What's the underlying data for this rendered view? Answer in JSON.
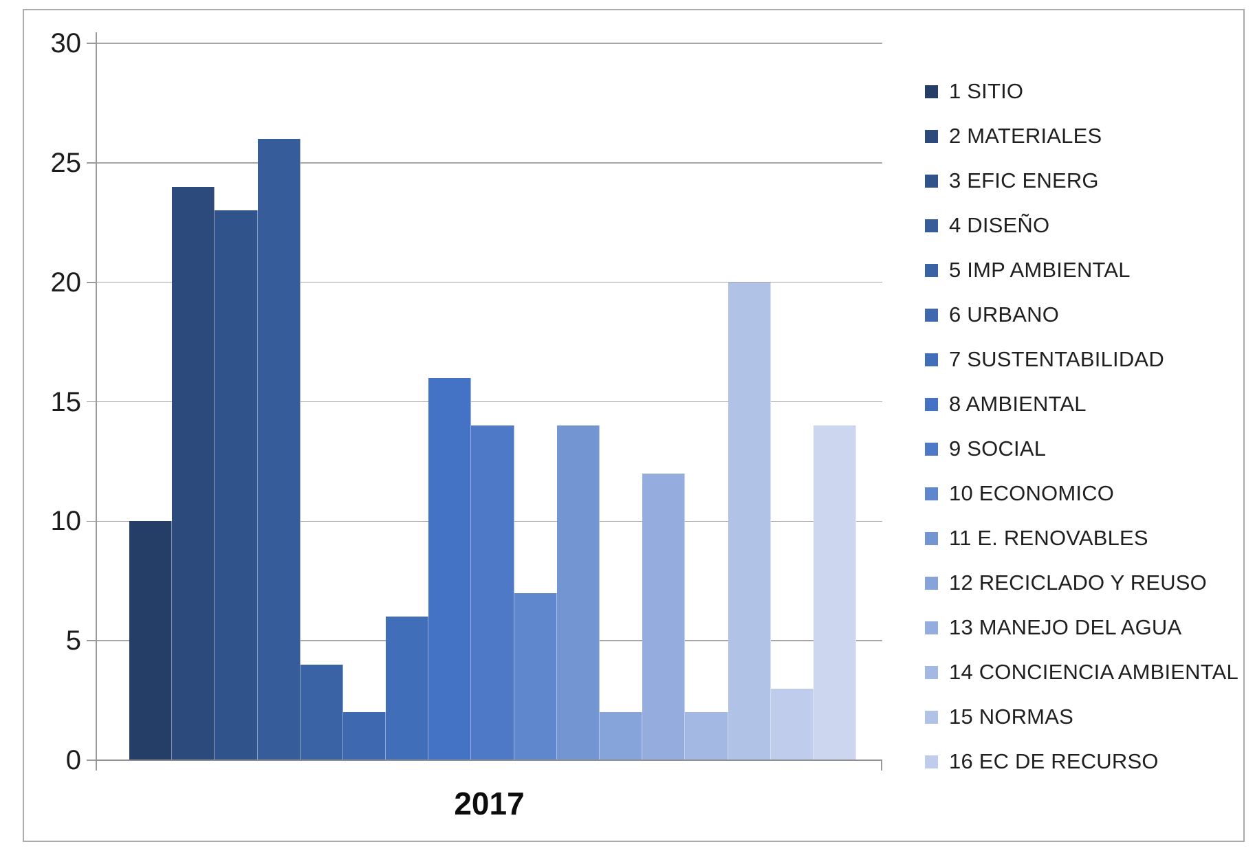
{
  "figure": {
    "background": "#ffffff",
    "frame_border_color": "#ababab",
    "gridline_color": "#a6a6a6"
  },
  "chart_data": {
    "type": "bar",
    "title": "",
    "x_label": "2017",
    "ylabel": "",
    "ylim": [
      0,
      30
    ],
    "y_ticks": [
      0,
      5,
      10,
      15,
      20,
      25,
      30
    ],
    "grid": true,
    "legend_position": "right",
    "series": [
      {
        "legend_label": "1 SITIO",
        "value": 10,
        "color": "#243E68"
      },
      {
        "legend_label": "2 MATERIALES",
        "value": 24,
        "color": "#2C4A7B"
      },
      {
        "legend_label": "3 EFIC  ENERG",
        "value": 23,
        "color": "#31538B"
      },
      {
        "legend_label": "4 DISEÑO",
        "value": 26,
        "color": "#365C9A"
      },
      {
        "legend_label": "5 IMP AMBIENTAL",
        "value": 4,
        "color": "#3A63A6"
      },
      {
        "legend_label": "6 URBANO",
        "value": 2,
        "color": "#3E69B0"
      },
      {
        "legend_label": "7 SUSTENTABILIDAD",
        "value": 6,
        "color": "#416EB8"
      },
      {
        "legend_label": "8 AMBIENTAL",
        "value": 16,
        "color": "#4472C4"
      },
      {
        "legend_label": "9 SOCIAL",
        "value": 14,
        "color": "#4D79C7"
      },
      {
        "legend_label": "10 ECONOMICO",
        "value": 7,
        "color": "#5F87CD"
      },
      {
        "legend_label": "11 E. RENOVABLES",
        "value": 14,
        "color": "#7396D3"
      },
      {
        "legend_label": "12 RECICLADO Y REUSO",
        "value": 2,
        "color": "#86A3DA"
      },
      {
        "legend_label": "13 MANEJO DEL AGUA",
        "value": 12,
        "color": "#94ADDE"
      },
      {
        "legend_label": "14 CONCIENCIA AMBIENTAL",
        "value": 2,
        "color": "#A3B8E3"
      },
      {
        "legend_label": "15 NORMAS",
        "value": 20,
        "color": "#B1C2E7"
      },
      {
        "legend_label": "16 EC DE RECURSO",
        "value": 3,
        "color": "#BFCCEB"
      },
      {
        "legend_label": null,
        "value": 14,
        "color": "#CDD6EF"
      }
    ]
  }
}
